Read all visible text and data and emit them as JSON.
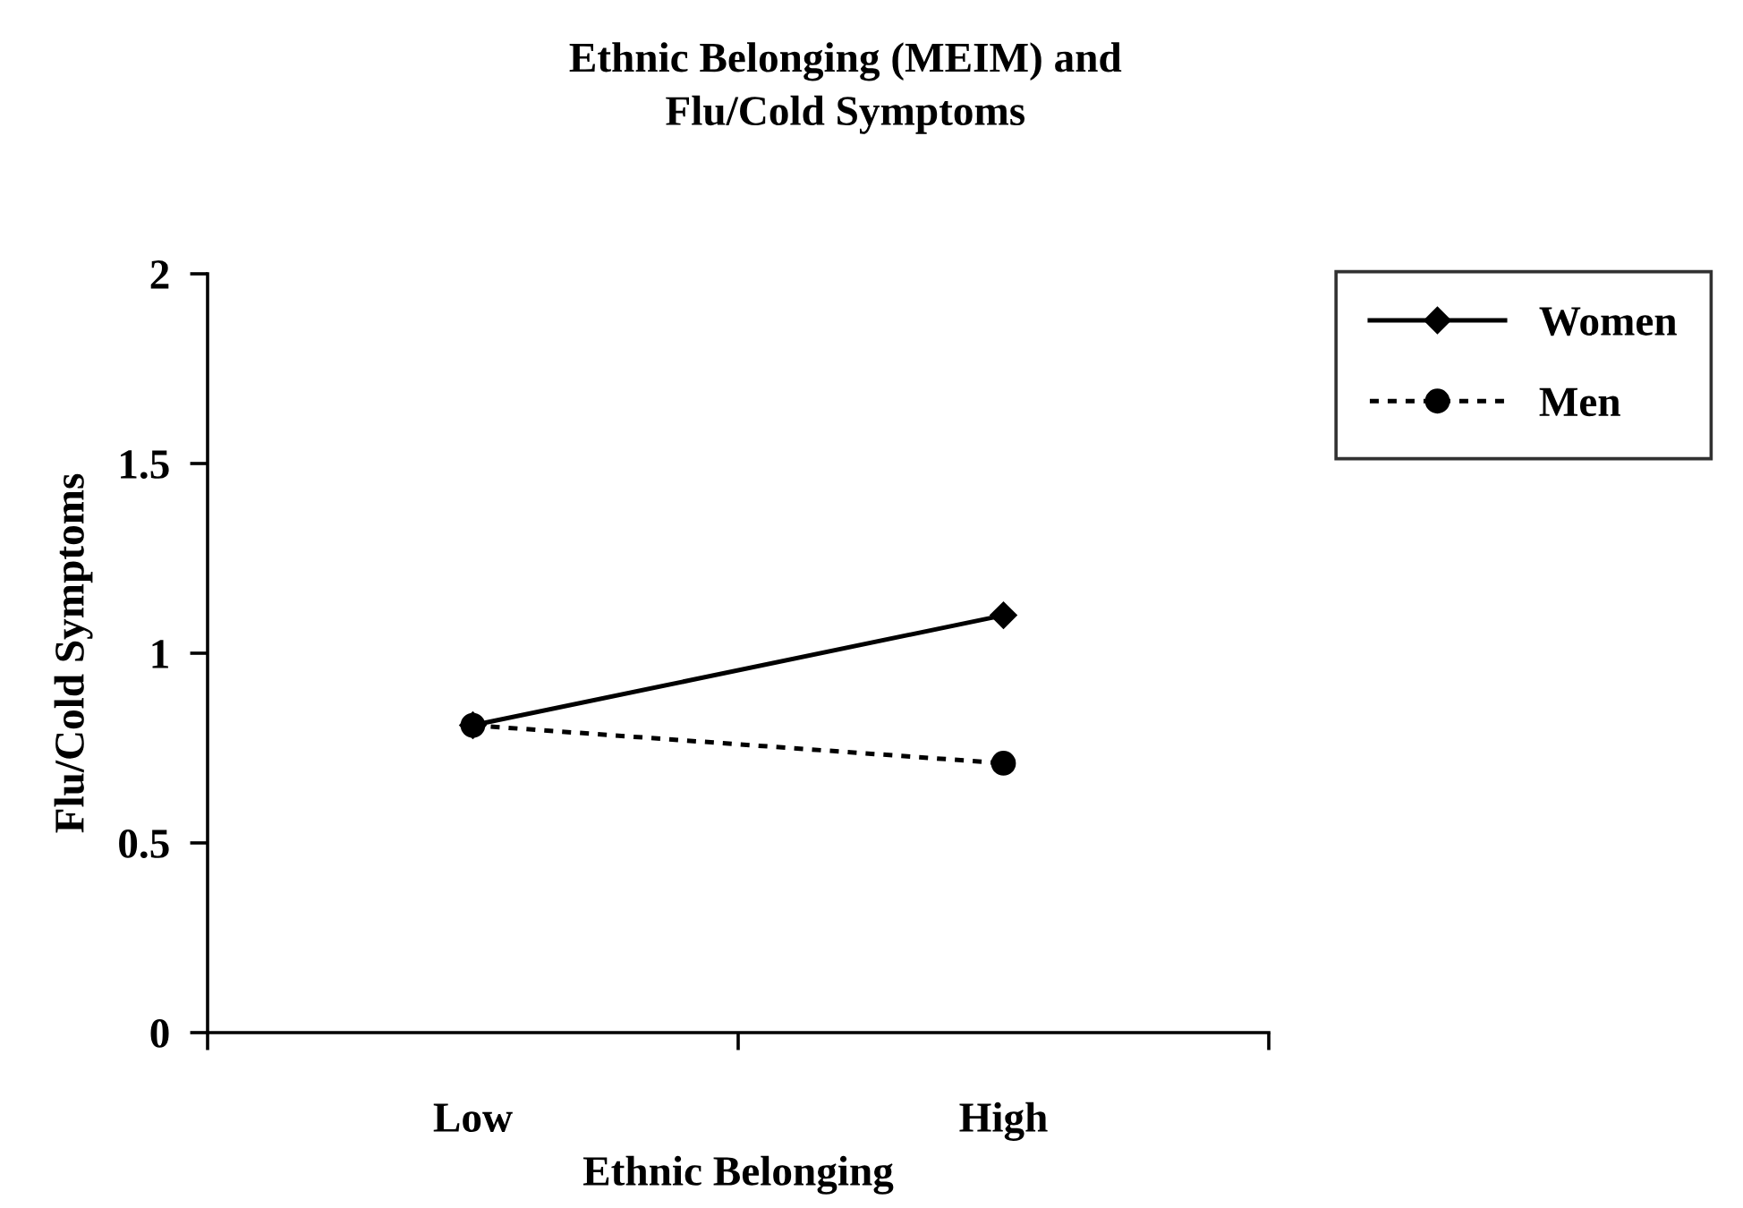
{
  "chart_data": {
    "type": "line",
    "title": "Ethnic Belonging (MEIM) and\nFlu/Cold Symptoms",
    "xlabel": "Ethnic Belonging",
    "ylabel": "Flu/Cold Symptoms",
    "categories": [
      "Low",
      "High"
    ],
    "series": [
      {
        "name": "Women",
        "color": "#000000",
        "values": [
          0.81,
          1.1
        ],
        "marker": "diamond",
        "line_style": "solid"
      },
      {
        "name": "Men",
        "color": "#000000",
        "values": [
          0.81,
          0.71
        ],
        "marker": "circle",
        "line_style": "dotted"
      }
    ],
    "ylim": [
      0,
      2
    ],
    "yticks": [
      0,
      0.5,
      1,
      1.5,
      2
    ],
    "grid": false,
    "legend": "top right"
  }
}
